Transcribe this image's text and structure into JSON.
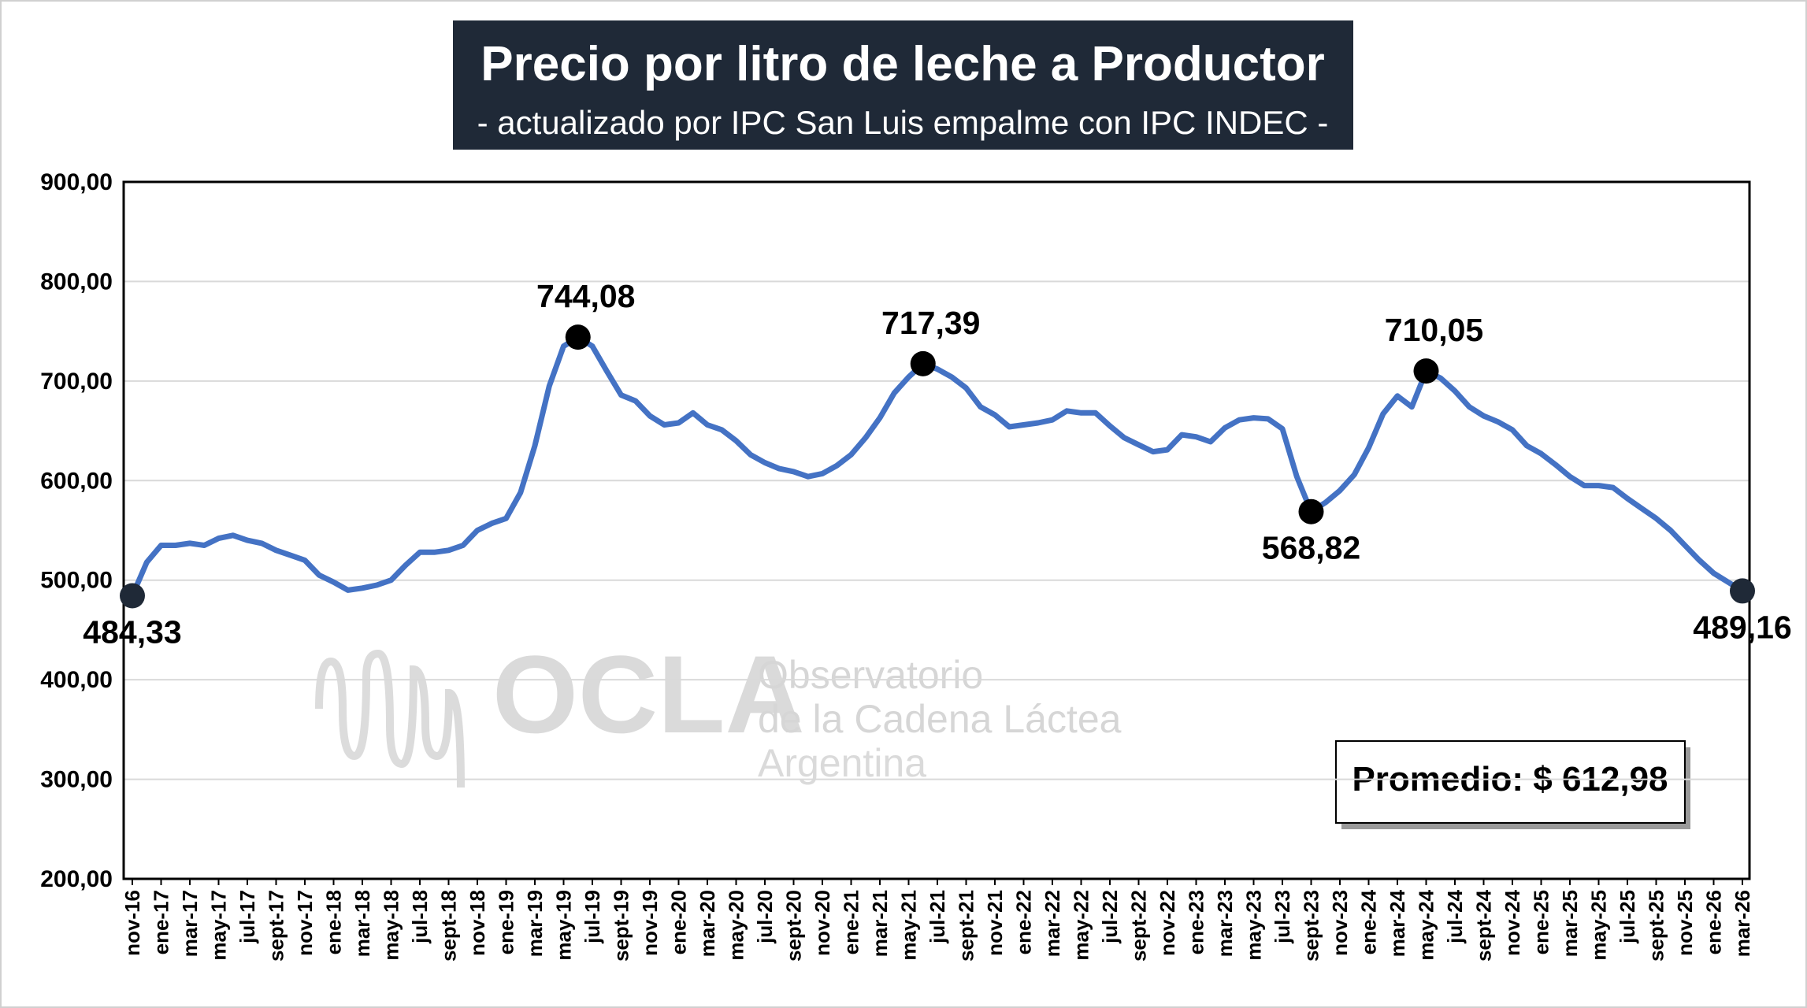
{
  "chart_data": {
    "type": "line",
    "title": "Precio por litro de leche a Productor",
    "subtitle": "- actualizado por IPC San Luis empalme con IPC INDEC -",
    "annotation": "Promedio: $ 612,98",
    "watermark": [
      "OCLA",
      "Observatorio",
      "de la Cadena Láctea",
      "Argentina"
    ],
    "categories": [
      "nov-16",
      null,
      "ene-17",
      null,
      "mar-17",
      null,
      "may-17",
      null,
      "jul-17",
      null,
      "sept-17",
      null,
      "nov-17",
      null,
      "ene-18",
      null,
      "mar-18",
      null,
      "may-18",
      null,
      "jul-18",
      null,
      "sept-18",
      null,
      "nov-18",
      null,
      "ene-19",
      null,
      "mar-19",
      null,
      "may-19",
      null,
      "jul-19",
      null,
      "sept-19",
      null,
      "nov-19",
      null,
      "ene-20",
      null,
      "mar-20",
      null,
      "may-20",
      null,
      "jul-20",
      null,
      "sept-20",
      null,
      "nov-20",
      null,
      "ene-21",
      null,
      "mar-21",
      null,
      "may-21",
      null,
      "jul-21",
      null,
      "sept-21",
      null,
      "nov-21",
      null,
      "ene-22",
      null,
      "mar-22",
      null,
      "may-22",
      null,
      "jul-22",
      null,
      "sept-22",
      null,
      "nov-22",
      null,
      "ene-23",
      null,
      "mar-23",
      null,
      "may-23",
      null,
      "jul-23",
      null,
      "sept-23",
      null,
      "nov-23",
      null,
      "ene-24",
      null,
      "mar-24",
      null,
      "may-24",
      null,
      "jul-24",
      null,
      "sept-24",
      null,
      "nov-24",
      null,
      "ene-25",
      null,
      "mar-25",
      null,
      "may-25",
      null,
      "jul-25",
      null,
      "sept-25",
      null,
      "nov-25",
      null,
      "ene-26",
      null,
      "mar-26"
    ],
    "series": [
      {
        "name": "Precio por litro",
        "color": "#4472c4",
        "values": [
          484.33,
          518,
          535,
          535,
          537,
          535,
          542,
          545,
          540,
          537,
          530,
          525,
          520,
          505,
          498,
          490,
          492,
          495,
          500,
          515,
          528,
          528,
          530,
          535,
          550,
          557,
          562,
          588,
          635,
          695,
          735,
          744.08,
          735,
          710,
          686,
          680,
          665,
          656,
          658,
          668,
          656,
          651,
          640,
          626,
          618,
          612,
          609,
          604,
          607,
          615,
          626,
          643,
          663,
          688,
          704,
          717.39,
          712,
          704,
          693,
          674,
          666,
          654,
          656,
          658,
          661,
          670,
          668,
          668,
          655,
          643,
          636,
          629,
          631,
          646,
          644,
          639,
          653,
          661,
          663,
          662,
          652,
          604,
          568.82,
          578,
          590,
          606,
          633,
          667,
          685,
          674,
          710.05,
          703,
          690,
          674,
          665,
          659,
          651,
          635,
          627,
          616,
          604,
          595,
          595,
          593,
          582,
          572,
          562,
          550,
          535,
          520,
          507,
          498,
          489.16
        ],
        "value_labels": [
          "484,33",
          null,
          null,
          null,
          null,
          null,
          null,
          null,
          null,
          null,
          null,
          null,
          null,
          null,
          null,
          null,
          null,
          null,
          null,
          null,
          null,
          null,
          null,
          null,
          null,
          null,
          null,
          null,
          null,
          null,
          null,
          "744,08",
          null,
          null,
          null,
          null,
          null,
          null,
          null,
          null,
          null,
          null,
          null,
          null,
          null,
          null,
          null,
          null,
          null,
          null,
          null,
          null,
          null,
          null,
          null,
          "717,39",
          null,
          null,
          null,
          null,
          null,
          null,
          null,
          null,
          null,
          null,
          null,
          null,
          null,
          null,
          null,
          null,
          null,
          null,
          null,
          null,
          null,
          null,
          null,
          null,
          null,
          null,
          "568,82",
          null,
          null,
          null,
          null,
          null,
          null,
          null,
          "710,05",
          null,
          null,
          null,
          null,
          null,
          null,
          null,
          null,
          null,
          null,
          null,
          null,
          null,
          null,
          null,
          null,
          null,
          null,
          null,
          null,
          null,
          "489,16"
        ]
      }
    ],
    "ylim": [
      200,
      900
    ],
    "yticks": [
      {
        "value": 200,
        "label": "200,00"
      },
      {
        "value": 300,
        "label": "300,00"
      },
      {
        "value": 400,
        "label": "400,00"
      },
      {
        "value": 500,
        "label": "500,00"
      },
      {
        "value": 600,
        "label": "600,00"
      },
      {
        "value": 700,
        "label": "700,00"
      },
      {
        "value": 800,
        "label": "800,00"
      },
      {
        "value": 900,
        "label": "900,00"
      }
    ],
    "grid": true
  }
}
